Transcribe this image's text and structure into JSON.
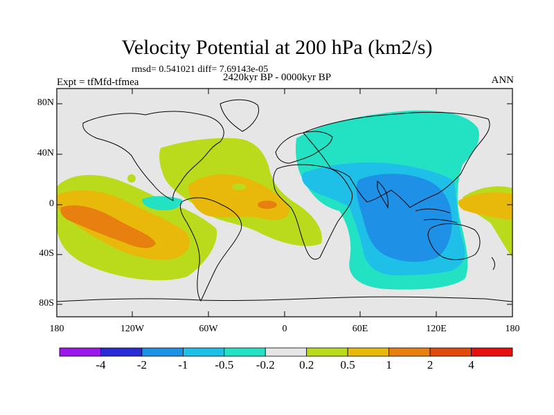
{
  "title": "Velocity Potential at 200 hPa (km2/s)",
  "stats": "rmsd= 0.541021 diff= 7.69143e-05",
  "experiment": "Expt = tfMfd-tfmea",
  "period": "2420kyr BP - 0000kyr BP",
  "season": "ANN",
  "axes": {
    "lat_labels": [
      "80N",
      "40N",
      "0",
      "40S",
      "80S"
    ],
    "lon_labels": [
      "180",
      "120W",
      "60W",
      "0",
      "60E",
      "120E",
      "180"
    ]
  },
  "colorbar": {
    "labels": [
      "-4",
      "-2",
      "-1",
      "-0.5",
      "-0.2",
      "0.2",
      "0.5",
      "1",
      "2",
      "4"
    ],
    "colors": [
      "#9a18e8",
      "#2b2bd6",
      "#1e90e6",
      "#1ec0e8",
      "#23e2c4",
      "#e6e6e6",
      "#b9db1c",
      "#e8b90a",
      "#e88010",
      "#e04a0c",
      "#e61010"
    ]
  }
}
